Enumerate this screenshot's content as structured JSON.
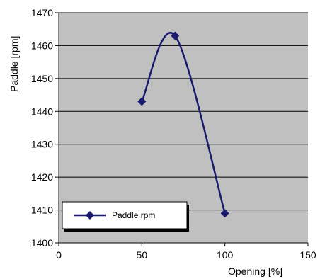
{
  "chart_data": {
    "type": "line",
    "title": "",
    "xlabel": "Opening [%]",
    "ylabel": "Paddle [rpm]",
    "xlim": [
      0,
      150
    ],
    "ylim": [
      1400,
      1470
    ],
    "x_ticks": [
      "0",
      "50",
      "100",
      "150"
    ],
    "y_ticks": [
      "1400",
      "1410",
      "1420",
      "1430",
      "1440",
      "1450",
      "1460",
      "1470"
    ],
    "grid": "horizontal",
    "legend_position": "bottom-left",
    "series": [
      {
        "name": "Paddle rpm",
        "marker": "diamond",
        "smooth": true,
        "x": [
          50,
          70,
          100
        ],
        "y": [
          1443,
          1463,
          1409
        ]
      }
    ],
    "colors": {
      "series": "#1a1a6e",
      "plot_background": "#c0c0c0",
      "gridline": "#000000"
    }
  }
}
